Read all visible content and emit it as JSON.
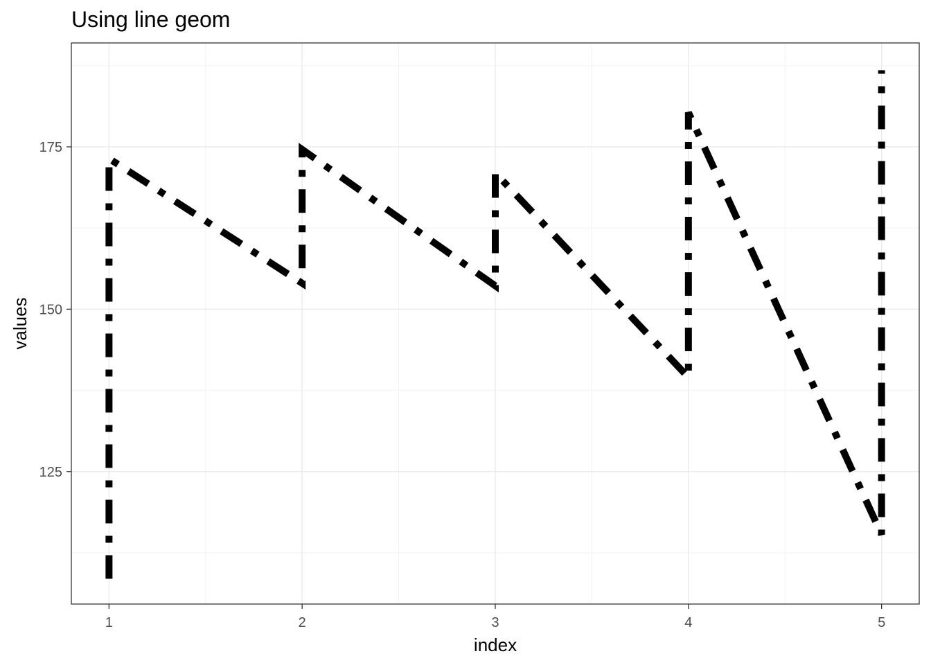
{
  "chart_data": {
    "type": "line",
    "title": "Using line geom",
    "xlabel": "index",
    "ylabel": "values",
    "x_ticks": [
      1,
      2,
      3,
      4,
      5
    ],
    "y_ticks": [
      125,
      150,
      175
    ],
    "xlim": [
      0.805,
      5.195
    ],
    "ylim": [
      104.6,
      191.0
    ],
    "grid": true,
    "legend": "none",
    "line_color": "#000000",
    "line_style": "dot-dash",
    "series": [
      {
        "x": [
          1,
          1,
          2,
          2,
          3,
          3,
          4,
          4,
          5,
          5
        ],
        "values": [
          108.5,
          173.2,
          154.0,
          174.6,
          153.6,
          171.0,
          139.5,
          180.3,
          115.3,
          186.8
        ]
      }
    ]
  }
}
